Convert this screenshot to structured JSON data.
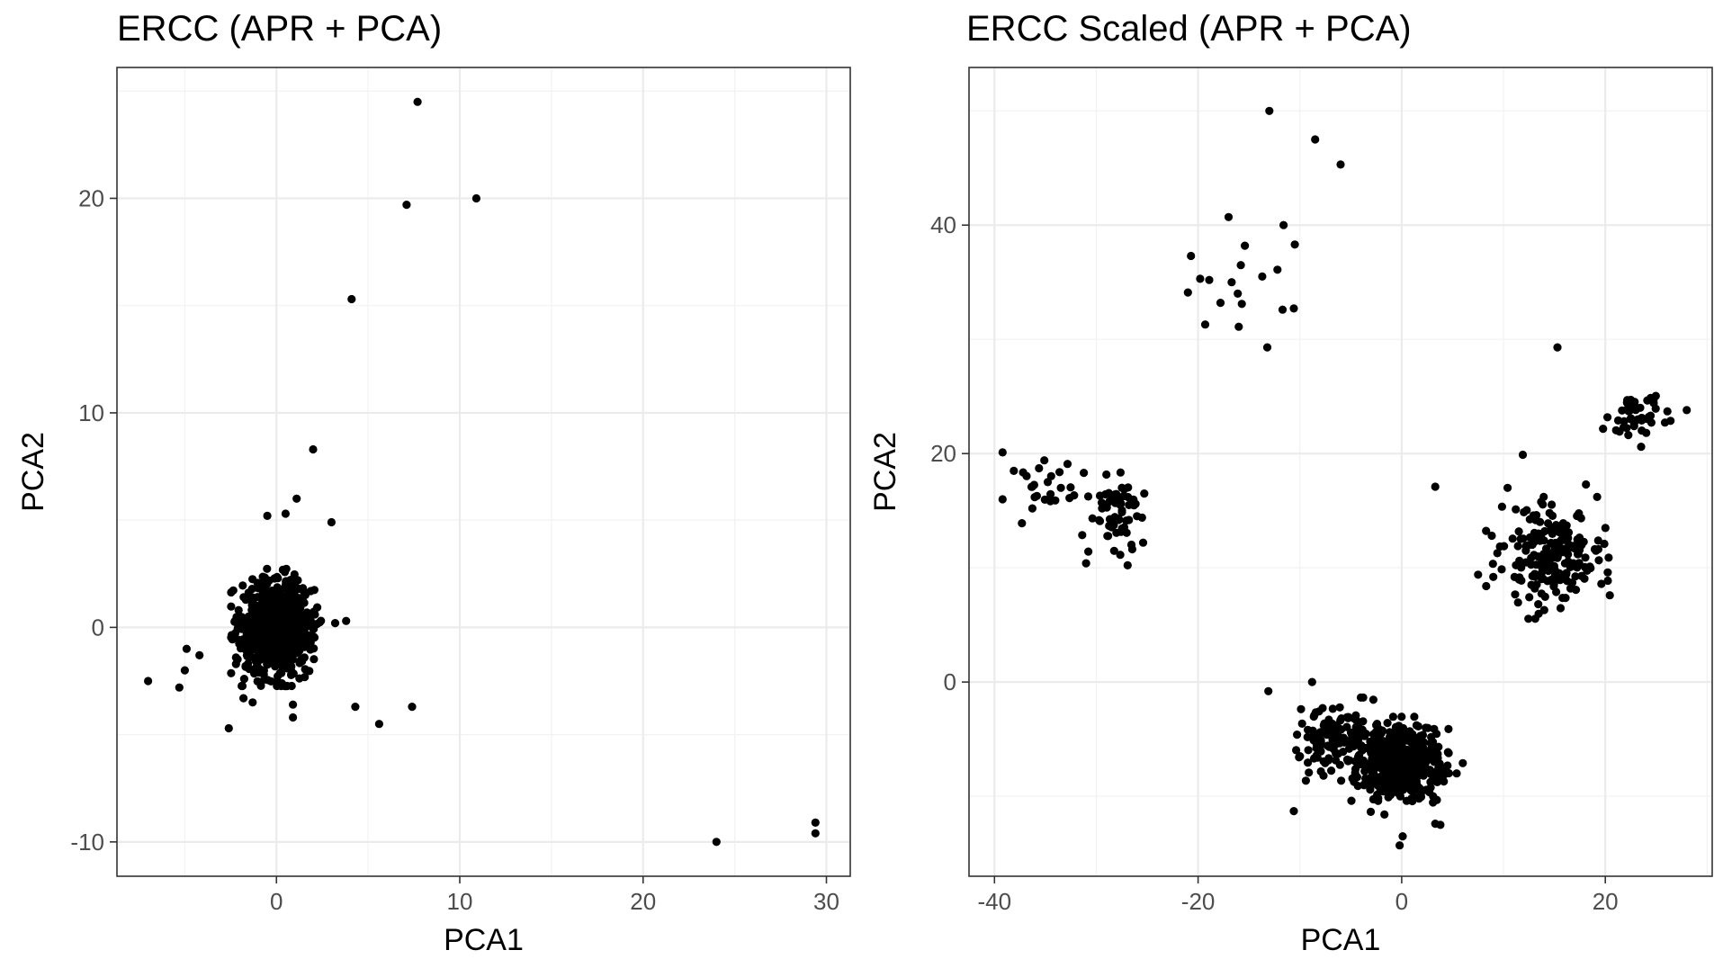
{
  "chart_data": [
    {
      "type": "scatter",
      "title": "ERCC (APR + PCA)",
      "xlabel": "PCA1",
      "ylabel": "PCA2",
      "xlim": [
        -8.7,
        31.3
      ],
      "ylim": [
        -11.6,
        26.1
      ],
      "xticks": [
        0,
        10,
        20,
        30
      ],
      "xtick_labels": [
        "0",
        "10",
        "20",
        "30"
      ],
      "xminor": [
        -5,
        5,
        15,
        25
      ],
      "yticks": [
        -10,
        0,
        10,
        20
      ],
      "ytick_labels": [
        "-10",
        "0",
        "10",
        "20"
      ],
      "yminor": [
        -5,
        5,
        15,
        25
      ],
      "grid": true,
      "marker_color": "#000000",
      "points": [
        [
          7.7,
          24.5
        ],
        [
          7.1,
          19.7
        ],
        [
          10.9,
          20.0
        ],
        [
          4.1,
          15.3
        ],
        [
          2.0,
          8.3
        ],
        [
          3.0,
          4.9
        ],
        [
          1.1,
          6.0
        ],
        [
          -0.5,
          5.2
        ],
        [
          0.5,
          5.3
        ],
        [
          -7.0,
          -2.5
        ],
        [
          -5.3,
          -2.8
        ],
        [
          -4.9,
          -1.0
        ],
        [
          -5.0,
          -2.0
        ],
        [
          -4.2,
          -1.3
        ],
        [
          -2.6,
          -4.7
        ],
        [
          -1.8,
          -3.3
        ],
        [
          -1.3,
          -3.5
        ],
        [
          0.9,
          -4.2
        ],
        [
          0.9,
          -3.6
        ],
        [
          4.3,
          -3.7
        ],
        [
          5.6,
          -4.5
        ],
        [
          7.4,
          -3.7
        ],
        [
          3.2,
          0.2
        ],
        [
          3.8,
          0.3
        ],
        [
          24.0,
          -10.0
        ],
        [
          29.4,
          -9.1
        ],
        [
          29.4,
          -9.6
        ]
      ],
      "dense_cluster": {
        "cx": 0.0,
        "cy": 0.0,
        "sx": 0.95,
        "sy": 1.05,
        "n": 900
      }
    },
    {
      "type": "scatter",
      "title": "ERCC Scaled (APR + PCA)",
      "xlabel": "PCA1",
      "ylabel": "PCA2",
      "xlim": [
        -42.5,
        30.5
      ],
      "ylim": [
        -17.0,
        53.8
      ],
      "xticks": [
        -40,
        -20,
        0,
        20
      ],
      "xtick_labels": [
        "-40",
        "-20",
        "0",
        "20"
      ],
      "xminor": [
        -30,
        -10,
        10,
        30
      ],
      "yticks": [
        0,
        20,
        40
      ],
      "ytick_labels": [
        "0",
        "20",
        "40"
      ],
      "yminor": [
        -10,
        10,
        30,
        50
      ],
      "grid": true,
      "marker_color": "#000000",
      "points": [
        [
          -13.0,
          50.0
        ],
        [
          -8.5,
          47.5
        ],
        [
          -6.0,
          45.3
        ],
        [
          -17.0,
          40.7
        ],
        [
          -11.6,
          40.0
        ],
        [
          -15.4,
          38.2
        ],
        [
          -10.5,
          38.3
        ],
        [
          -20.7,
          37.3
        ],
        [
          -19.8,
          35.3
        ],
        [
          -18.9,
          35.2
        ],
        [
          -16.7,
          35.0
        ],
        [
          -13.7,
          35.5
        ],
        [
          -12.2,
          36.1
        ],
        [
          -15.8,
          36.5
        ],
        [
          -21.0,
          34.1
        ],
        [
          -16.1,
          34.0
        ],
        [
          -17.8,
          33.2
        ],
        [
          -15.7,
          33.1
        ],
        [
          -11.7,
          32.6
        ],
        [
          -10.6,
          32.7
        ],
        [
          -19.3,
          31.3
        ],
        [
          -16.0,
          31.1
        ],
        [
          -13.2,
          29.3
        ],
        [
          -39.2,
          20.1
        ],
        [
          -39.2,
          16.0
        ],
        [
          -37.3,
          13.9
        ],
        [
          -31.0,
          10.4
        ],
        [
          -25.4,
          12.2
        ],
        [
          -13.1,
          -0.8
        ],
        [
          -8.8,
          0.0
        ],
        [
          -10.6,
          -11.3
        ],
        [
          -1.7,
          -11.6
        ],
        [
          -0.2,
          -14.3
        ],
        [
          0.1,
          -13.5
        ],
        [
          3.3,
          -12.4
        ],
        [
          3.8,
          -12.5
        ],
        [
          5.4,
          -8.0
        ],
        [
          6.0,
          -7.1
        ],
        [
          11.9,
          19.9
        ],
        [
          15.3,
          29.3
        ],
        [
          3.3,
          17.1
        ],
        [
          7.5,
          9.4
        ],
        [
          9.0,
          9.2
        ],
        [
          8.3,
          8.4
        ],
        [
          22.5,
          24.7
        ],
        [
          26.1,
          23.7
        ],
        [
          28.0,
          23.8
        ],
        [
          18.1,
          17.3
        ],
        [
          19.2,
          16.2
        ],
        [
          19.9,
          12.1
        ],
        [
          14.0,
          6.3
        ],
        [
          10.4,
          17.0
        ]
      ],
      "clusters": [
        {
          "cx": 0.0,
          "cy": -7.2,
          "sx": 1.9,
          "sy": 1.6,
          "n": 520
        },
        {
          "cx": -6.3,
          "cy": -5.0,
          "sx": 1.9,
          "sy": 1.4,
          "n": 130
        },
        {
          "cx": -28.0,
          "cy": 14.5,
          "sx": 1.3,
          "sy": 1.8,
          "n": 60
        },
        {
          "cx": -34.0,
          "cy": 17.2,
          "sx": 2.0,
          "sy": 0.9,
          "n": 24
        },
        {
          "cx": 14.3,
          "cy": 11.0,
          "sx": 2.4,
          "sy": 2.1,
          "n": 190
        },
        {
          "cx": 23.0,
          "cy": 23.0,
          "sx": 1.6,
          "sy": 1.2,
          "n": 45
        }
      ]
    }
  ]
}
